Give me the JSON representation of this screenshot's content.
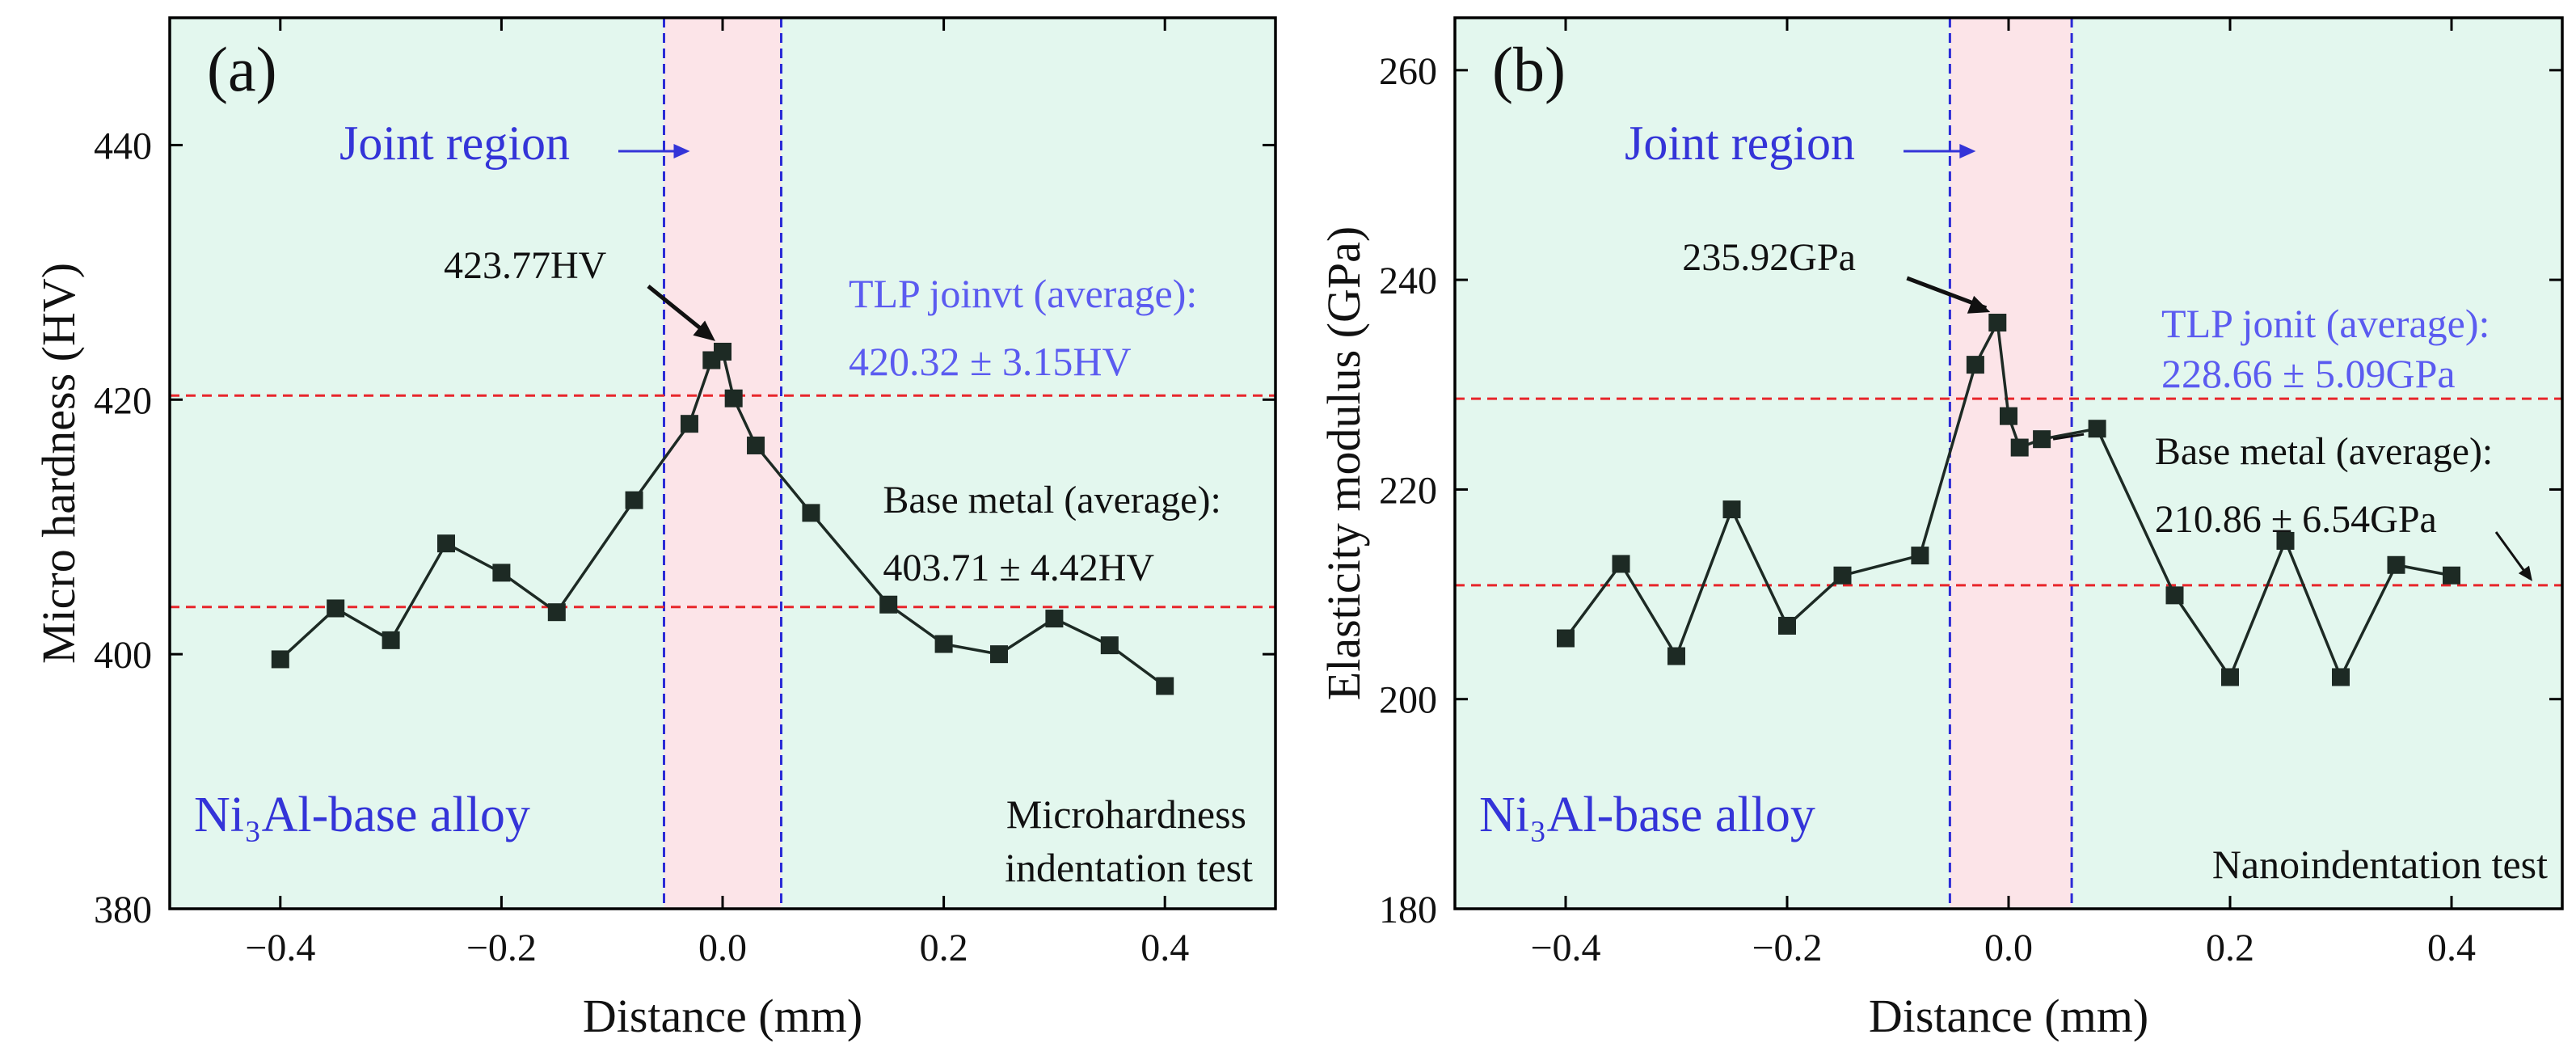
{
  "chart_data": [
    {
      "type": "line",
      "panel_label": "(a)",
      "xlabel": "Distance (mm)",
      "ylabel": "Micro hardness (HV)",
      "xlim": [
        -0.5,
        0.5
      ],
      "ylim": [
        380,
        450
      ],
      "x_ticks": [
        -0.4,
        -0.2,
        0.0,
        0.2,
        0.4
      ],
      "x_tick_labels": [
        "−0.4",
        "−0.2",
        "0.0",
        "0.2",
        "0.4"
      ],
      "y_ticks": [
        380,
        400,
        420,
        440
      ],
      "y_tick_labels": [
        "380",
        "400",
        "420",
        "440"
      ],
      "joint_region": {
        "x_start": -0.053,
        "x_end": 0.053
      },
      "series": [
        {
          "name": "Micro hardness",
          "x": [
            -0.4,
            -0.35,
            -0.3,
            -0.25,
            -0.2,
            -0.15,
            -0.08,
            -0.03,
            -0.01,
            0.0,
            0.01,
            0.03,
            0.08,
            0.15,
            0.2,
            0.25,
            0.3,
            0.35,
            0.4
          ],
          "y": [
            399.6,
            403.6,
            401.1,
            408.7,
            406.4,
            403.3,
            412.1,
            418.1,
            423.1,
            423.77,
            420.1,
            416.4,
            411.1,
            403.9,
            400.8,
            400.0,
            402.8,
            400.7,
            397.5
          ]
        }
      ],
      "reference_lines": [
        {
          "name": "TLP joint average",
          "y": 420.32
        },
        {
          "name": "Base metal average",
          "y": 403.71
        }
      ],
      "annotations": {
        "joint_region_label": "Joint region",
        "peak_label": "423.77HV",
        "tlp_line1": "TLP joinvt (average):",
        "tlp_line2": "420.32 ± 3.15HV",
        "base_line1": "Base metal (average):",
        "base_line2": "403.71 ± 4.42HV",
        "alloy_label": "Ni₃Al-base alloy",
        "test_line1": "Microhardness",
        "test_line2": "indentation test"
      }
    },
    {
      "type": "line",
      "panel_label": "(b)",
      "xlabel": "Distance (mm)",
      "ylabel": "Elasticity modulus (GPa)",
      "xlim": [
        -0.5,
        0.5
      ],
      "ylim": [
        180,
        265
      ],
      "x_ticks": [
        -0.4,
        -0.2,
        0.0,
        0.2,
        0.4
      ],
      "x_tick_labels": [
        "−0.4",
        "−0.2",
        "0.0",
        "0.2",
        "0.4"
      ],
      "y_ticks": [
        180,
        200,
        220,
        240,
        260
      ],
      "y_tick_labels": [
        "180",
        "200",
        "220",
        "240",
        "260"
      ],
      "joint_region": {
        "x_start": -0.053,
        "x_end": 0.057
      },
      "series": [
        {
          "name": "Elasticity modulus",
          "x": [
            -0.4,
            -0.35,
            -0.3,
            -0.25,
            -0.2,
            -0.15,
            -0.08,
            -0.03,
            -0.01,
            0.0,
            0.01,
            0.03,
            0.08,
            0.15,
            0.2,
            0.25,
            0.3,
            0.35,
            0.4
          ],
          "y": [
            205.8,
            212.9,
            204.1,
            218.1,
            207.0,
            211.8,
            213.7,
            231.9,
            235.92,
            227.0,
            224.0,
            224.8,
            225.8,
            209.9,
            202.1,
            215.1,
            202.1,
            212.8,
            211.8
          ]
        }
      ],
      "reference_lines": [
        {
          "name": "TLP joint average",
          "y": 228.66
        },
        {
          "name": "Base metal average",
          "y": 210.86
        }
      ],
      "annotations": {
        "joint_region_label": "Joint region",
        "peak_label": "235.92GPa",
        "tlp_line1": "TLP jonit (average):",
        "tlp_line2": "228.66 ± 5.09GPa",
        "base_line1": "Base metal (average):",
        "base_line2": "210.86 ± 6.54GPa",
        "alloy_label": "Ni₃Al-base alloy",
        "test_line1": "Nanoindentation test"
      }
    }
  ],
  "colors": {
    "plot_background": "#e3f7ee",
    "joint_fill": "#fce4e8",
    "joint_border": "#2b2bd6",
    "reference_line": "#e8262b",
    "marker": "#1d2a24",
    "blue_text": "#3434d8",
    "light_blue_text": "#5b5bf0",
    "text": "#111111"
  }
}
